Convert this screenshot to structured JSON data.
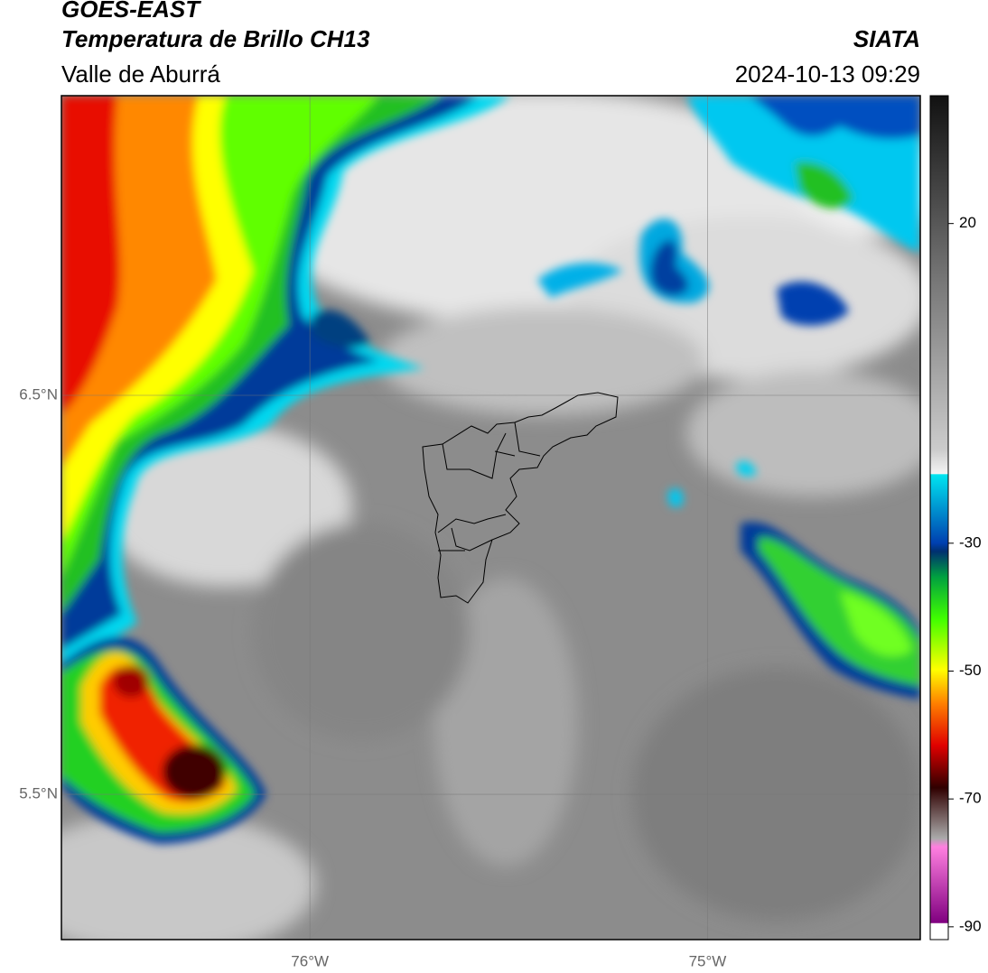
{
  "header": {
    "satellite": "GOES-EAST",
    "product": "Temperatura de Brillo CH13",
    "region": "Valle de Aburrá",
    "agency": "SIATA",
    "datetime": "2024-10-13 09:29"
  },
  "map": {
    "xlim": [
      -76.625,
      -74.465
    ],
    "ylim": [
      5.136,
      7.251
    ],
    "xticks": [
      {
        "value": -76,
        "label": "76°W"
      },
      {
        "value": -75,
        "label": "75°W"
      }
    ],
    "yticks": [
      {
        "value": 6.5,
        "label": "6.5°N"
      },
      {
        "value": 5.5,
        "label": "5.5°N"
      }
    ]
  },
  "colorbar": {
    "lim": [
      -92,
      40
    ],
    "ticks": [
      20,
      -30,
      -50,
      -70,
      -90
    ]
  }
}
